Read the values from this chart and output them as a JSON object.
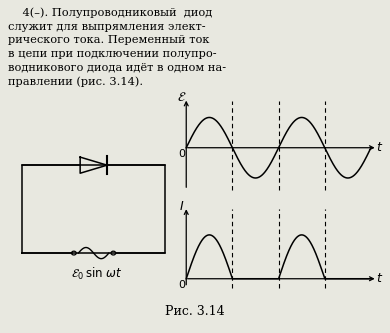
{
  "caption": "Рис. 3.14",
  "bg_color": "#e8e8e0",
  "graph_bg": "#e8e8e0",
  "text_line1": "    4(–). Полупроводниковый  диод",
  "text_line2": "служит для выпрямления элект-",
  "text_line3": "рического тока. Переменный ток",
  "text_line4": "в цепи при подключении полупро-",
  "text_line5": "водникового диода идёт в одном на-",
  "text_line6": "правлении (рис. 3.14)."
}
